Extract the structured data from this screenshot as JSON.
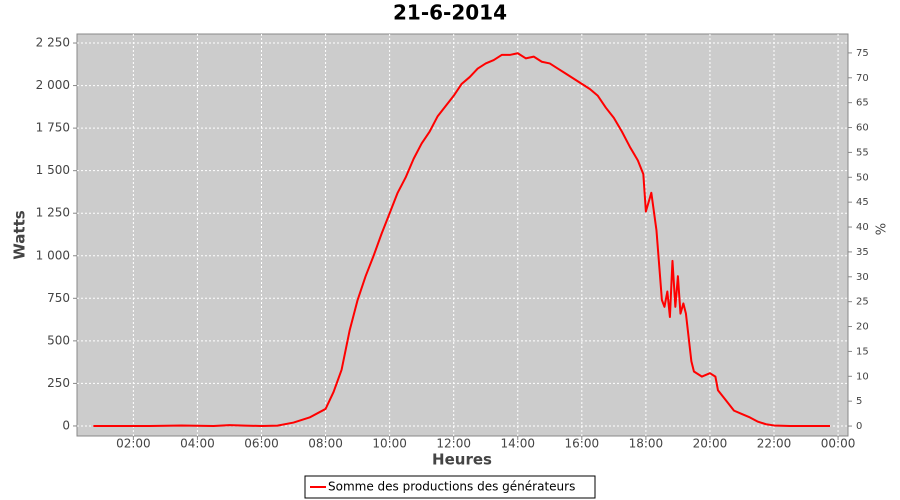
{
  "chart_data": {
    "type": "line",
    "title": "21-6-2014",
    "x_label": "Heures",
    "y_label": "Watts",
    "y2_label": "%",
    "xlim": [
      0.24,
      24.31
    ],
    "xticks": [
      {
        "value": 2,
        "label": "02:00"
      },
      {
        "value": 4,
        "label": "04:00"
      },
      {
        "value": 6,
        "label": "06:00"
      },
      {
        "value": 8,
        "label": "08:00"
      },
      {
        "value": 10,
        "label": "10:00"
      },
      {
        "value": 12,
        "label": "12:00"
      },
      {
        "value": 14,
        "label": "14:00"
      },
      {
        "value": 16,
        "label": "16:00"
      },
      {
        "value": 18,
        "label": "18:00"
      },
      {
        "value": 20,
        "label": "20:00"
      },
      {
        "value": 22,
        "label": "22:00"
      },
      {
        "value": 24,
        "label": "00:00"
      }
    ],
    "ylim": [
      -59,
      2303
    ],
    "yticks": [
      0,
      250,
      500,
      750,
      {
        "value": 1000,
        "label": "1 000"
      },
      {
        "value": 1250,
        "label": "1 250"
      },
      {
        "value": 1500,
        "label": "1 500"
      },
      {
        "value": 1750,
        "label": "1 750"
      },
      {
        "value": 2000,
        "label": "2 000"
      },
      {
        "value": 2250,
        "label": "2 250"
      }
    ],
    "y2lim": [
      -2,
      78.8
    ],
    "y2ticks": [
      0,
      5,
      10,
      15,
      20,
      25,
      30,
      35,
      40,
      45,
      50,
      55,
      60,
      65,
      70,
      75
    ],
    "grid": true,
    "legend": "bottom",
    "x": [
      0.75,
      1.5,
      2.5,
      3.5,
      4.5,
      5,
      5.5,
      6,
      6.5,
      7,
      7.5,
      8,
      8.25,
      8.5,
      8.75,
      9,
      9.25,
      9.5,
      9.75,
      10,
      10.25,
      10.5,
      10.75,
      11,
      11.25,
      11.5,
      11.75,
      12,
      12.25,
      12.5,
      12.75,
      13,
      13.25,
      13.5,
      13.75,
      14,
      14.25,
      14.5,
      14.75,
      15,
      15.25,
      15.5,
      15.75,
      16,
      16.25,
      16.5,
      16.75,
      17,
      17.25,
      17.5,
      17.75,
      17.92,
      18,
      18.17,
      18.33,
      18.5,
      18.58,
      18.67,
      18.75,
      18.83,
      18.92,
      19,
      19.08,
      19.17,
      19.25,
      19.42,
      19.5,
      19.75,
      20,
      20.17,
      20.25,
      20.5,
      20.75,
      21,
      21.25,
      21.5,
      21.75,
      22,
      22.5,
      23,
      23.75
    ],
    "series": [
      {
        "name": "Somme des productions des  générateurs",
        "color": "#ff0000",
        "values": [
          0,
          0,
          0,
          3,
          0,
          5,
          2,
          0,
          2,
          20,
          50,
          100,
          200,
          330,
          560,
          740,
          880,
          1000,
          1130,
          1250,
          1370,
          1460,
          1570,
          1660,
          1730,
          1820,
          1880,
          1940,
          2010,
          2050,
          2100,
          2130,
          2150,
          2180,
          2180,
          2190,
          2160,
          2170,
          2140,
          2130,
          2100,
          2070,
          2040,
          2010,
          1980,
          1940,
          1870,
          1810,
          1730,
          1640,
          1560,
          1480,
          1260,
          1370,
          1150,
          740,
          700,
          790,
          640,
          970,
          700,
          880,
          660,
          720,
          660,
          380,
          320,
          290,
          310,
          290,
          210,
          150,
          90,
          70,
          50,
          25,
          10,
          3,
          0,
          0,
          0
        ]
      }
    ]
  }
}
